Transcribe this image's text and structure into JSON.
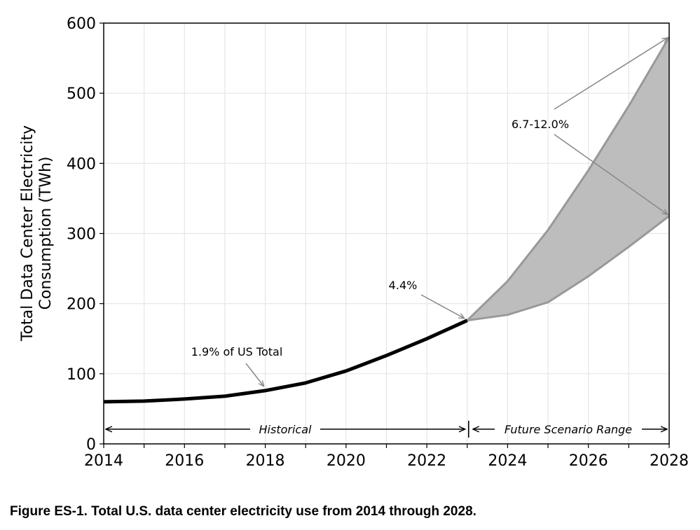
{
  "chart_data": {
    "type": "line",
    "x": [
      2014,
      2015,
      2016,
      2017,
      2018,
      2019,
      2020,
      2021,
      2022,
      2023
    ],
    "series": [
      {
        "values": [
          60,
          61,
          64,
          68,
          76,
          87,
          104,
          126,
          150,
          176
        ]
      }
    ],
    "scenario_range": {
      "x": [
        2023,
        2024,
        2025,
        2026,
        2027,
        2028
      ],
      "low": [
        176,
        184,
        202,
        239,
        281,
        325
      ],
      "high": [
        176,
        232,
        305,
        390,
        482,
        580
      ]
    },
    "xlabel": "",
    "ylabel_line1": "Total Data Center Electricity",
    "ylabel_line2": "Consumption (TWh)",
    "xlim": [
      2014,
      2028
    ],
    "ylim": [
      0,
      600
    ],
    "xticks": [
      2014,
      2016,
      2018,
      2020,
      2022,
      2024,
      2026,
      2028
    ],
    "yticks": [
      0,
      100,
      200,
      300,
      400,
      500,
      600
    ],
    "grid": "on",
    "annotations": [
      {
        "text": "1.9% of US Total"
      },
      {
        "text": "4.4%"
      },
      {
        "text": "6.7-12.0%"
      }
    ],
    "range_labels": {
      "historical": "Historical",
      "future": "Future Scenario Range"
    },
    "colors": {
      "line": "#000000",
      "range_fill": "#bdbdbd",
      "range_edge": "#999999",
      "arrow": "#888888",
      "grid": "#e6e6e6"
    }
  },
  "caption": "Figure ES-1. Total U.S. data center electricity use from 2014 through 2028."
}
